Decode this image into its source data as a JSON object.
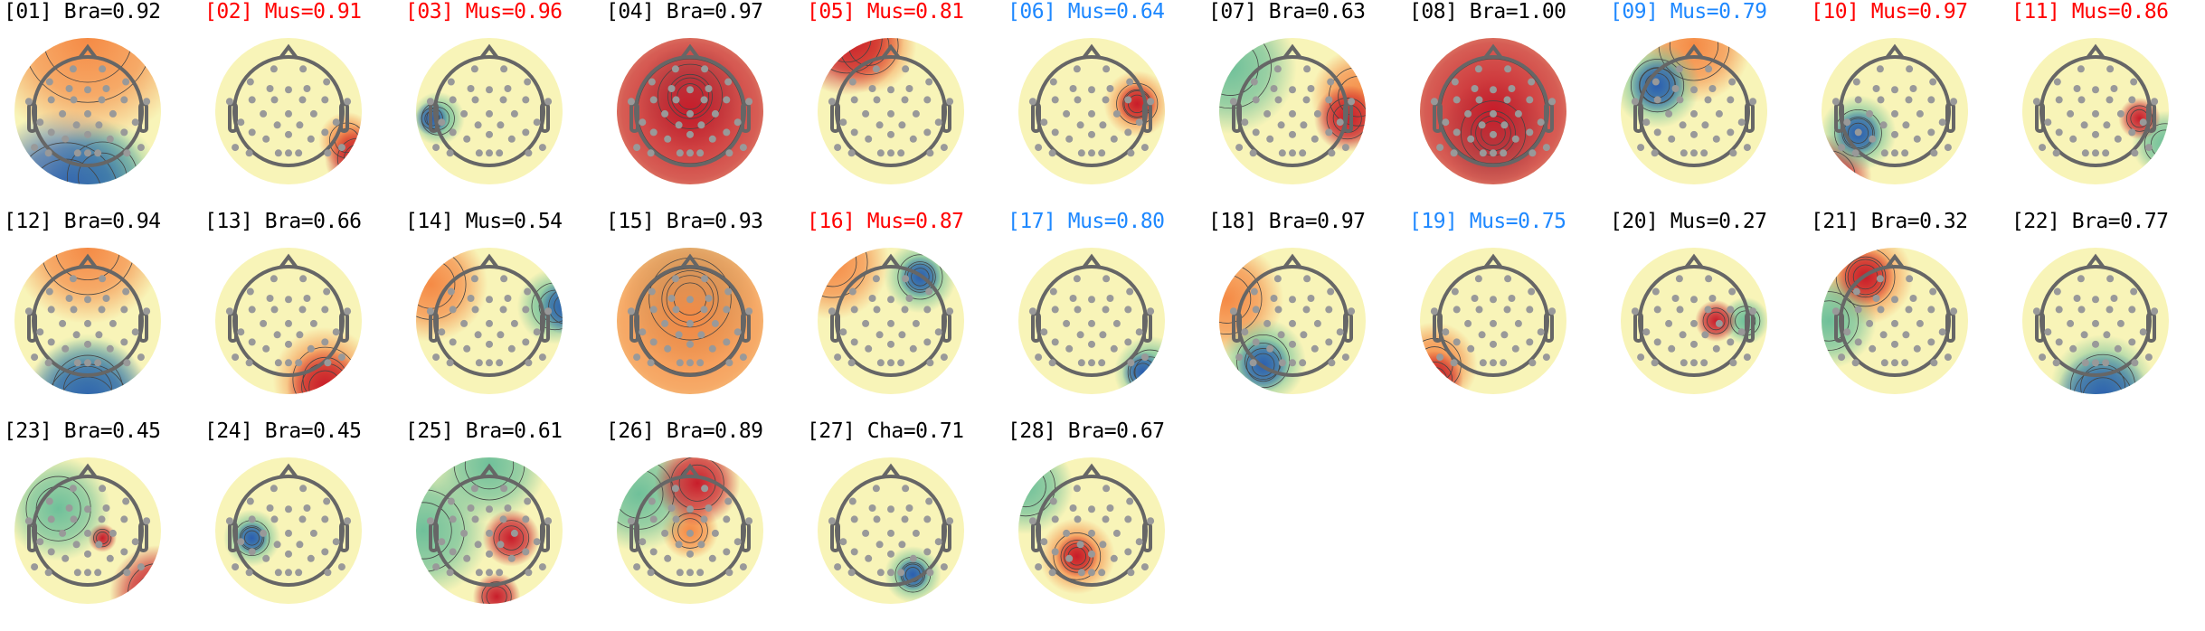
{
  "colors": {
    "brain": "#000000",
    "muscle_red": "#ff0000",
    "muscle_blue": "#1e88ff"
  },
  "components": [
    {
      "id": "[01]",
      "label": "Bra=0.92",
      "color": "#000000"
    },
    {
      "id": "[02]",
      "label": "Mus=0.91",
      "color": "#ff0000"
    },
    {
      "id": "[03]",
      "label": "Mus=0.96",
      "color": "#ff0000"
    },
    {
      "id": "[04]",
      "label": "Bra=0.97",
      "color": "#000000"
    },
    {
      "id": "[05]",
      "label": "Mus=0.81",
      "color": "#ff0000"
    },
    {
      "id": "[06]",
      "label": "Mus=0.64",
      "color": "#1e88ff"
    },
    {
      "id": "[07]",
      "label": "Bra=0.63",
      "color": "#000000"
    },
    {
      "id": "[08]",
      "label": "Bra=1.00",
      "color": "#000000"
    },
    {
      "id": "[09]",
      "label": "Mus=0.79",
      "color": "#1e88ff"
    },
    {
      "id": "[10]",
      "label": "Mus=0.97",
      "color": "#ff0000"
    },
    {
      "id": "[11]",
      "label": "Mus=0.86",
      "color": "#ff0000"
    },
    {
      "id": "[12]",
      "label": "Bra=0.94",
      "color": "#000000"
    },
    {
      "id": "[13]",
      "label": "Bra=0.66",
      "color": "#000000"
    },
    {
      "id": "[14]",
      "label": "Mus=0.54",
      "color": "#000000"
    },
    {
      "id": "[15]",
      "label": "Bra=0.93",
      "color": "#000000"
    },
    {
      "id": "[16]",
      "label": "Mus=0.87",
      "color": "#ff0000"
    },
    {
      "id": "[17]",
      "label": "Mus=0.80",
      "color": "#1e88ff"
    },
    {
      "id": "[18]",
      "label": "Bra=0.97",
      "color": "#000000"
    },
    {
      "id": "[19]",
      "label": "Mus=0.75",
      "color": "#1e88ff"
    },
    {
      "id": "[20]",
      "label": "Mus=0.27",
      "color": "#000000"
    },
    {
      "id": "[21]",
      "label": "Bra=0.32",
      "color": "#000000"
    },
    {
      "id": "[22]",
      "label": "Bra=0.77",
      "color": "#000000"
    },
    {
      "id": "[23]",
      "label": "Bra=0.45",
      "color": "#000000"
    },
    {
      "id": "[24]",
      "label": "Bra=0.45",
      "color": "#000000"
    },
    {
      "id": "[25]",
      "label": "Bra=0.61",
      "color": "#000000"
    },
    {
      "id": "[26]",
      "label": "Bra=0.89",
      "color": "#000000"
    },
    {
      "id": "[27]",
      "label": "Cha=0.71",
      "color": "#000000"
    },
    {
      "id": "[28]",
      "label": "Bra=0.67",
      "color": "#000000"
    }
  ]
}
